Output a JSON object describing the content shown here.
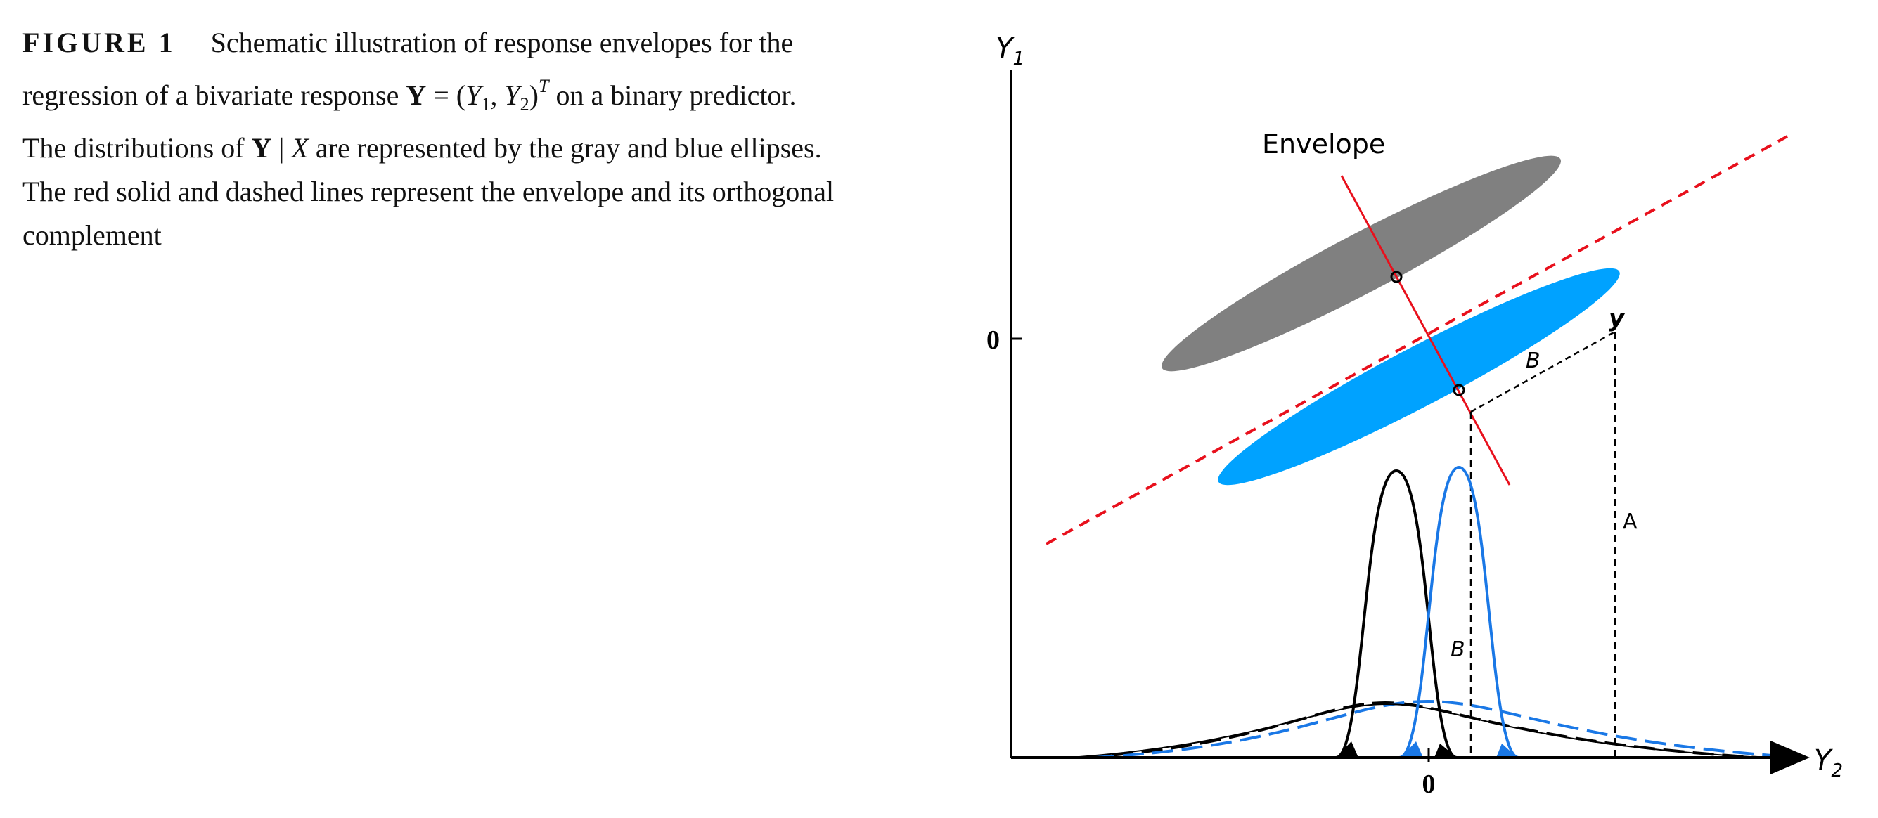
{
  "caption": {
    "label": "FIGURE 1",
    "line1_text": "Schematic illustration of response envelopes for the",
    "line2_pre": "regression of a bivariate response ",
    "Y_symbol": "Y",
    "eq_mid": " = (",
    "Y1_base": "Y",
    "Y1_sub": "1",
    "comma": ", ",
    "Y2_base": "Y",
    "Y2_sub": "2",
    "close_paren": ")",
    "transpose": "T",
    "line2_post": " on a binary predictor.",
    "line3_pre": "The distributions of ",
    "cond_Y": "Y",
    "cond_bar": " | ",
    "cond_X": "X",
    "line3_post": " are represented by the gray and blue ellipses.",
    "line4": "The red solid and dashed lines represent the envelope and its orthogonal",
    "line5": "complement"
  },
  "figure": {
    "y_axis_base": "Y",
    "y_axis_sub": "1",
    "x_axis_base": "Y",
    "x_axis_sub": "2",
    "y_zero_tick": "0",
    "x_zero_tick": "0",
    "envelope_label": "Envelope",
    "point_label": "y",
    "label_B_upper": "B",
    "label_A": "A",
    "label_B_lower": "B",
    "colors": {
      "gray_ellipse": "#808080",
      "blue_ellipse": "#00a2ff",
      "envelope": "#e8101c",
      "gray_density": "#000000",
      "blue_density": "#1a78e6"
    }
  }
}
